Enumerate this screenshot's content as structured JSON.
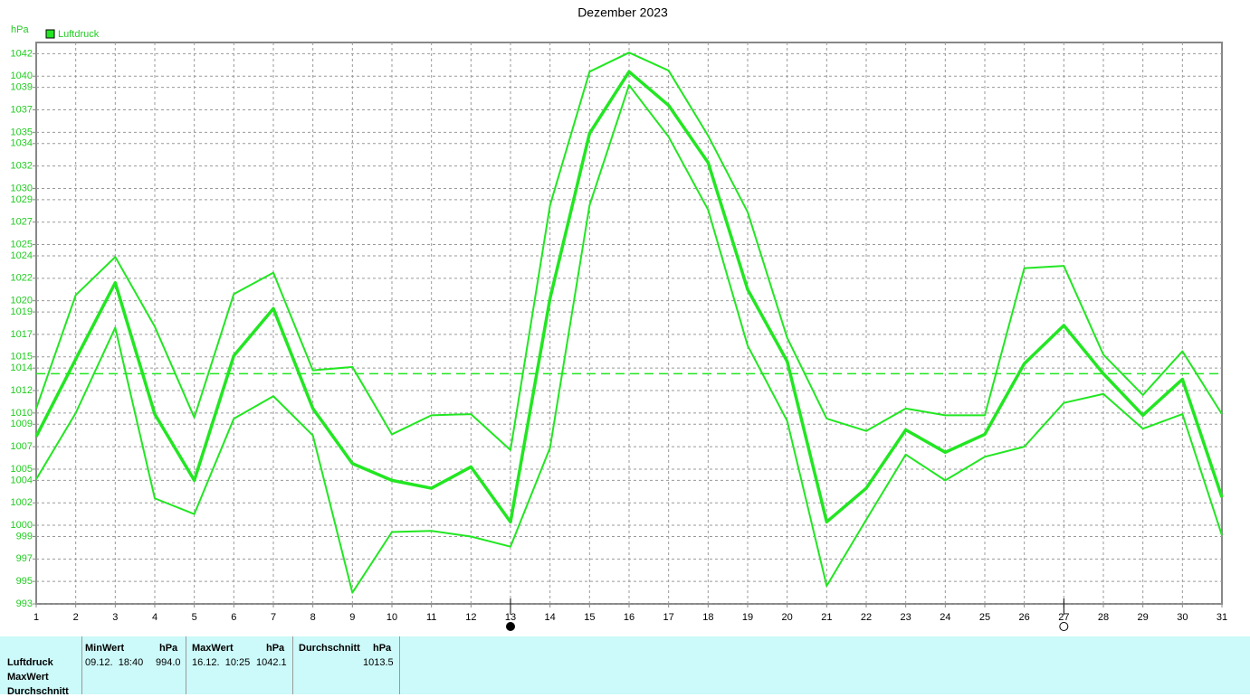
{
  "chart_data": {
    "type": "line",
    "title": "Dezember 2023",
    "y_label": "hPa",
    "x": [
      1,
      2,
      3,
      4,
      5,
      6,
      7,
      8,
      9,
      10,
      11,
      12,
      13,
      14,
      15,
      16,
      17,
      18,
      19,
      20,
      21,
      22,
      23,
      24,
      25,
      26,
      27,
      28,
      29,
      30,
      31
    ],
    "xlim": [
      1,
      31
    ],
    "ylim": [
      993,
      1043
    ],
    "yticks": [
      993,
      995,
      997,
      999,
      1000,
      1002,
      1004,
      1005,
      1007,
      1009,
      1010,
      1012,
      1014,
      1015,
      1017,
      1019,
      1020,
      1022,
      1024,
      1025,
      1027,
      1029,
      1030,
      1032,
      1034,
      1035,
      1037,
      1039,
      1040,
      1042
    ],
    "grid": true,
    "average": 1013.5,
    "series": [
      {
        "name": "Luftdruck",
        "color": "#22e622",
        "values": [
          1007.9,
          1014.8,
          1021.6,
          1009.9,
          1004.0,
          1015.1,
          1019.3,
          1010.4,
          1005.5,
          1004.0,
          1003.3,
          1005.2,
          1000.3,
          1020.2,
          1034.9,
          1040.4,
          1037.4,
          1032.3,
          1021.0,
          1014.6,
          1000.3,
          1003.3,
          1008.5,
          1006.5,
          1008.1,
          1014.4,
          1017.8,
          1013.5,
          1009.8,
          1013.0,
          1002.5
        ]
      },
      {
        "color": "#22e622",
        "values": [
          1010.4,
          1020.5,
          1023.9,
          1017.7,
          1009.6,
          1020.6,
          1022.5,
          1013.8,
          1014.1,
          1008.1,
          1009.8,
          1009.9,
          1006.7,
          1028.5,
          1040.4,
          1042.1,
          1040.5,
          1034.7,
          1027.9,
          1016.7,
          1009.5,
          1008.4,
          1010.4,
          1009.8,
          1009.8,
          1022.9,
          1023.1,
          1015.2,
          1011.6,
          1015.5,
          1009.9
        ]
      },
      {
        "color": "#22e622",
        "values": [
          1004.1,
          1010.0,
          1017.6,
          1002.4,
          1001.0,
          1009.5,
          1011.5,
          1008.0,
          994.0,
          999.4,
          999.5,
          999.0,
          998.1,
          1006.9,
          1028.5,
          1039.2,
          1034.6,
          1028.1,
          1016.0,
          1009.3,
          994.6,
          1000.5,
          1006.3,
          1004.0,
          1006.1,
          1007.0,
          1010.9,
          1011.7,
          1008.6,
          1009.9,
          999.1
        ]
      }
    ]
  },
  "stats": {
    "row_labels": [
      "Luftdruck",
      "MaxWert",
      "Durchschnitt"
    ],
    "columns": [
      {
        "header": "MinWert",
        "unit": "hPa",
        "time": "09.12.  18:40",
        "value": "994.0"
      },
      {
        "header": "MaxWert",
        "unit": "hPa",
        "time": "16.12.  10:25",
        "value": "1042.1"
      },
      {
        "header": "Durchschnitt",
        "unit": "hPa",
        "value": "1013.5"
      }
    ]
  }
}
